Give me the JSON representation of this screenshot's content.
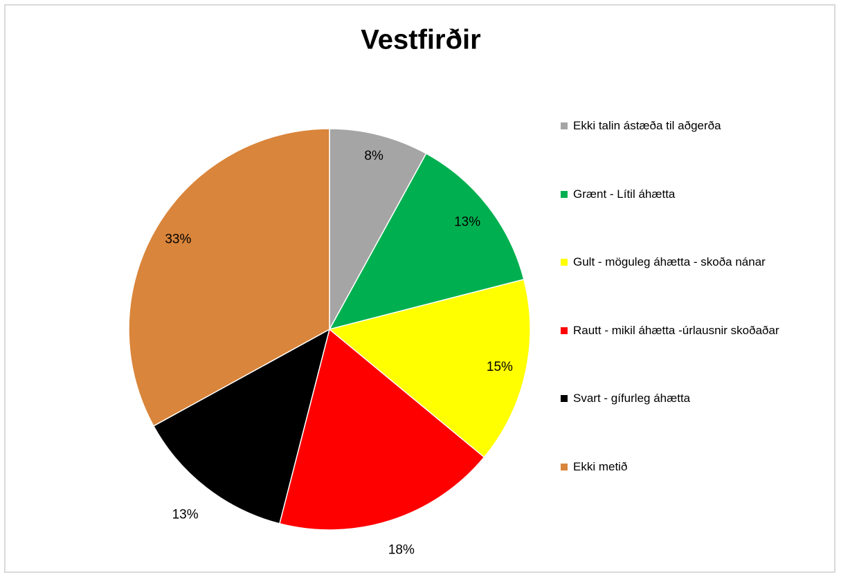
{
  "chart_data": {
    "type": "pie",
    "title": "Vestfirðir",
    "categories": [
      "Ekki talin ástæða til aðgerða",
      "Grænt - Lítil áhætta",
      "Gult - möguleg áhætta - skoða nánar",
      "Rautt - mikil áhætta -úrlausnir skoðaðar",
      "Svart - gífurleg áhætta",
      "Ekki metið"
    ],
    "values": [
      8,
      13,
      15,
      18,
      13,
      33
    ],
    "value_labels": [
      "8%",
      "13%",
      "15%",
      "18%",
      "13%",
      "33%"
    ],
    "colors": [
      "#a5a5a5",
      "#00b050",
      "#ffff00",
      "#ff0000",
      "#000000",
      "#d9853b"
    ],
    "legend": "right"
  }
}
